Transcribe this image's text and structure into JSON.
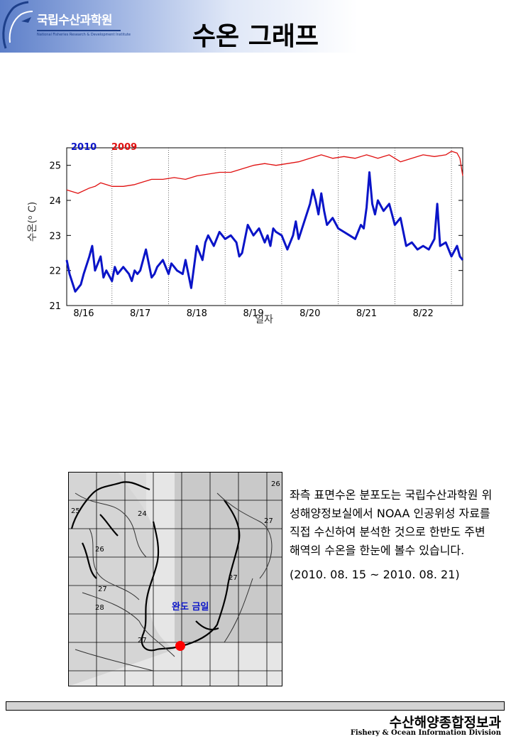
{
  "header": {
    "logo_text": "국립수산과학원",
    "logo_subtext": "National Fisheries Research & Development Institute",
    "title": "수온 그래프"
  },
  "chart_data": {
    "type": "line",
    "title": "",
    "xlabel": "일자",
    "ylabel": "수온(°C)",
    "ylabel_main": "수온(",
    "ylabel_sup": "o",
    "ylabel_end": " C)",
    "ylim": [
      21,
      25.5
    ],
    "yticks": [
      21,
      22,
      23,
      24,
      25
    ],
    "xticks": [
      "8/16",
      "8/17",
      "8/18",
      "8/19",
      "8/20",
      "8/21",
      "8/22"
    ],
    "x_range_days": [
      15.7,
      22.7
    ],
    "grid": "vertical dotted at each day",
    "legend": "top-left",
    "series": [
      {
        "name": "2010",
        "color": "#0a14c8",
        "x": [
          15.7,
          15.75,
          15.85,
          15.95,
          16.0,
          16.1,
          16.15,
          16.2,
          16.3,
          16.35,
          16.4,
          16.5,
          16.55,
          16.6,
          16.65,
          16.7,
          16.8,
          16.85,
          16.9,
          16.95,
          17.0,
          17.1,
          17.2,
          17.25,
          17.3,
          17.4,
          17.5,
          17.55,
          17.6,
          17.65,
          17.7,
          17.75,
          17.8,
          17.9,
          18.0,
          18.05,
          18.1,
          18.15,
          18.2,
          18.3,
          18.4,
          18.5,
          18.6,
          18.7,
          18.75,
          18.8,
          18.9,
          19.0,
          19.1,
          19.2,
          19.25,
          19.3,
          19.35,
          19.4,
          19.5,
          19.6,
          19.7,
          19.75,
          19.8,
          19.9,
          20.0,
          20.05,
          20.1,
          20.15,
          20.2,
          20.25,
          20.3,
          20.4,
          20.5,
          20.6,
          20.7,
          20.8,
          20.85,
          20.9,
          20.95,
          21.0,
          21.05,
          21.1,
          21.15,
          21.2,
          21.3,
          21.4,
          21.5,
          21.6,
          21.7,
          21.8,
          21.9,
          22.0,
          22.1,
          22.2,
          22.25,
          22.3,
          22.4,
          22.5,
          22.6,
          22.65,
          22.7
        ],
        "values": [
          22.3,
          21.9,
          21.4,
          21.6,
          21.9,
          22.4,
          22.7,
          22.0,
          22.4,
          21.8,
          22.0,
          21.7,
          22.1,
          21.9,
          22.0,
          22.1,
          21.9,
          21.7,
          22.0,
          21.9,
          22.0,
          22.6,
          21.8,
          21.9,
          22.1,
          22.3,
          21.9,
          22.2,
          22.1,
          22.0,
          21.95,
          21.9,
          22.3,
          21.5,
          22.7,
          22.5,
          22.3,
          22.8,
          23.0,
          22.7,
          23.1,
          22.9,
          23.0,
          22.8,
          22.4,
          22.5,
          23.3,
          23.0,
          23.2,
          22.8,
          23.0,
          22.7,
          23.2,
          23.1,
          23.0,
          22.6,
          23.0,
          23.4,
          22.9,
          23.4,
          23.9,
          24.3,
          24.0,
          23.6,
          24.2,
          23.7,
          23.3,
          23.5,
          23.2,
          23.1,
          23.0,
          22.9,
          23.1,
          23.3,
          23.2,
          23.8,
          24.8,
          23.9,
          23.6,
          24.0,
          23.7,
          23.9,
          23.3,
          23.5,
          22.7,
          22.8,
          22.6,
          22.7,
          22.6,
          22.9,
          23.9,
          22.7,
          22.8,
          22.4,
          22.7,
          22.4,
          22.3
        ]
      },
      {
        "name": "2009",
        "color": "#e01010",
        "x": [
          15.7,
          15.9,
          16.1,
          16.2,
          16.3,
          16.5,
          16.7,
          16.9,
          17.0,
          17.2,
          17.4,
          17.6,
          17.8,
          18.0,
          18.2,
          18.4,
          18.6,
          18.8,
          19.0,
          19.2,
          19.4,
          19.6,
          19.8,
          20.0,
          20.2,
          20.4,
          20.6,
          20.8,
          21.0,
          21.2,
          21.4,
          21.6,
          21.8,
          22.0,
          22.2,
          22.4,
          22.5,
          22.6,
          22.65,
          22.7
        ],
        "values": [
          24.3,
          24.2,
          24.35,
          24.4,
          24.5,
          24.4,
          24.4,
          24.45,
          24.5,
          24.6,
          24.6,
          24.65,
          24.6,
          24.7,
          24.75,
          24.8,
          24.8,
          24.9,
          25.0,
          25.05,
          25.0,
          25.05,
          25.1,
          25.2,
          25.3,
          25.2,
          25.25,
          25.2,
          25.3,
          25.2,
          25.3,
          25.1,
          25.2,
          25.3,
          25.25,
          25.3,
          25.4,
          25.35,
          25.2,
          24.7
        ]
      }
    ]
  },
  "map": {
    "label": "완도 금일",
    "isotherms": [
      "24",
      "25",
      "26",
      "26",
      "27",
      "27",
      "28",
      "27",
      "27"
    ]
  },
  "description": {
    "body": "좌측 표면수온 분포도는 국립수산과학원 위성해양정보실에서 NOAA 인공위성 자료를 직접 수신하여 분석한 것으로 한반도 주변해역의 수온을 한눈에 볼수 있습니다.",
    "range": "(2010. 08. 15 ~ 2010. 08. 21)"
  },
  "footer": {
    "title_kr": "수산해양종합정보과",
    "title_en": "Fishery & Ocean Information Division"
  }
}
